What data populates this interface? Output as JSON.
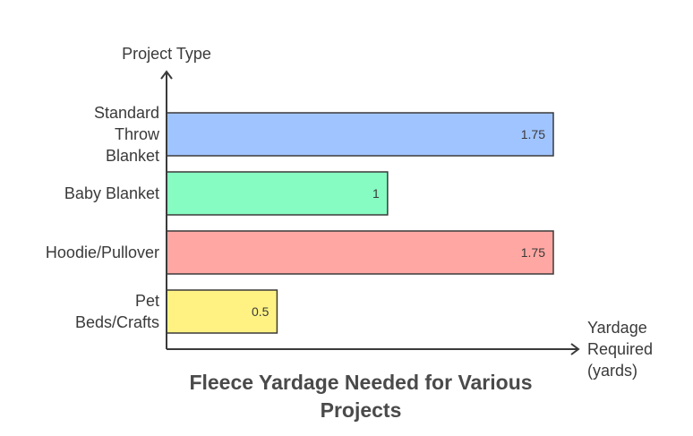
{
  "chart_data": {
    "type": "bar",
    "orientation": "horizontal",
    "title": "Fleece Yardage Needed for Various Projects",
    "ylabel": "Project Type",
    "xlabel": "Yardage Required (yards)",
    "xlabel_lines": [
      "Yardage",
      "Required",
      "(yards)"
    ],
    "categories": [
      "Standard Throw Blanket",
      "Baby Blanket",
      "Hoodie/Pullover",
      "Pet Beds/Crafts"
    ],
    "category_lines": [
      [
        "Standard",
        "Throw",
        "Blanket"
      ],
      [
        "Baby Blanket"
      ],
      [
        "Hoodie/Pullover"
      ],
      [
        "Pet",
        "Beds/Crafts"
      ]
    ],
    "values": [
      1.75,
      1,
      1.75,
      0.5
    ],
    "value_labels": [
      "1.75",
      "1",
      "1.75",
      "0.5"
    ],
    "colors": [
      "#a0c4ff",
      "#86fbc2",
      "#ffa8a3",
      "#fff283"
    ],
    "xlim": [
      0,
      2.1
    ],
    "grid": false,
    "legend": "none"
  }
}
